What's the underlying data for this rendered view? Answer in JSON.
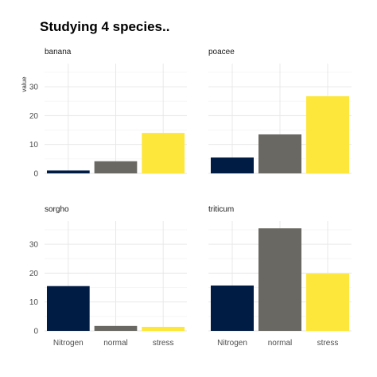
{
  "chart_data": {
    "type": "bar",
    "title": "Studying 4 species..",
    "ylabel": "value",
    "xlabel": "",
    "categories": [
      "Nitrogen",
      "normal",
      "stress"
    ],
    "ylim": [
      0,
      38
    ],
    "yticks": [
      0,
      10,
      20,
      30
    ],
    "grid": true,
    "legend": "none",
    "colors": {
      "Nitrogen": "#001b44",
      "normal": "#6a6863",
      "stress": "#fde73a"
    },
    "panels": [
      {
        "name": "banana",
        "values": [
          1.0,
          4.2,
          14.0
        ]
      },
      {
        "name": "poacee",
        "values": [
          5.5,
          13.5,
          26.7
        ]
      },
      {
        "name": "sorgho",
        "values": [
          15.5,
          1.7,
          1.4
        ]
      },
      {
        "name": "triticum",
        "values": [
          15.7,
          35.5,
          19.8
        ]
      }
    ]
  }
}
